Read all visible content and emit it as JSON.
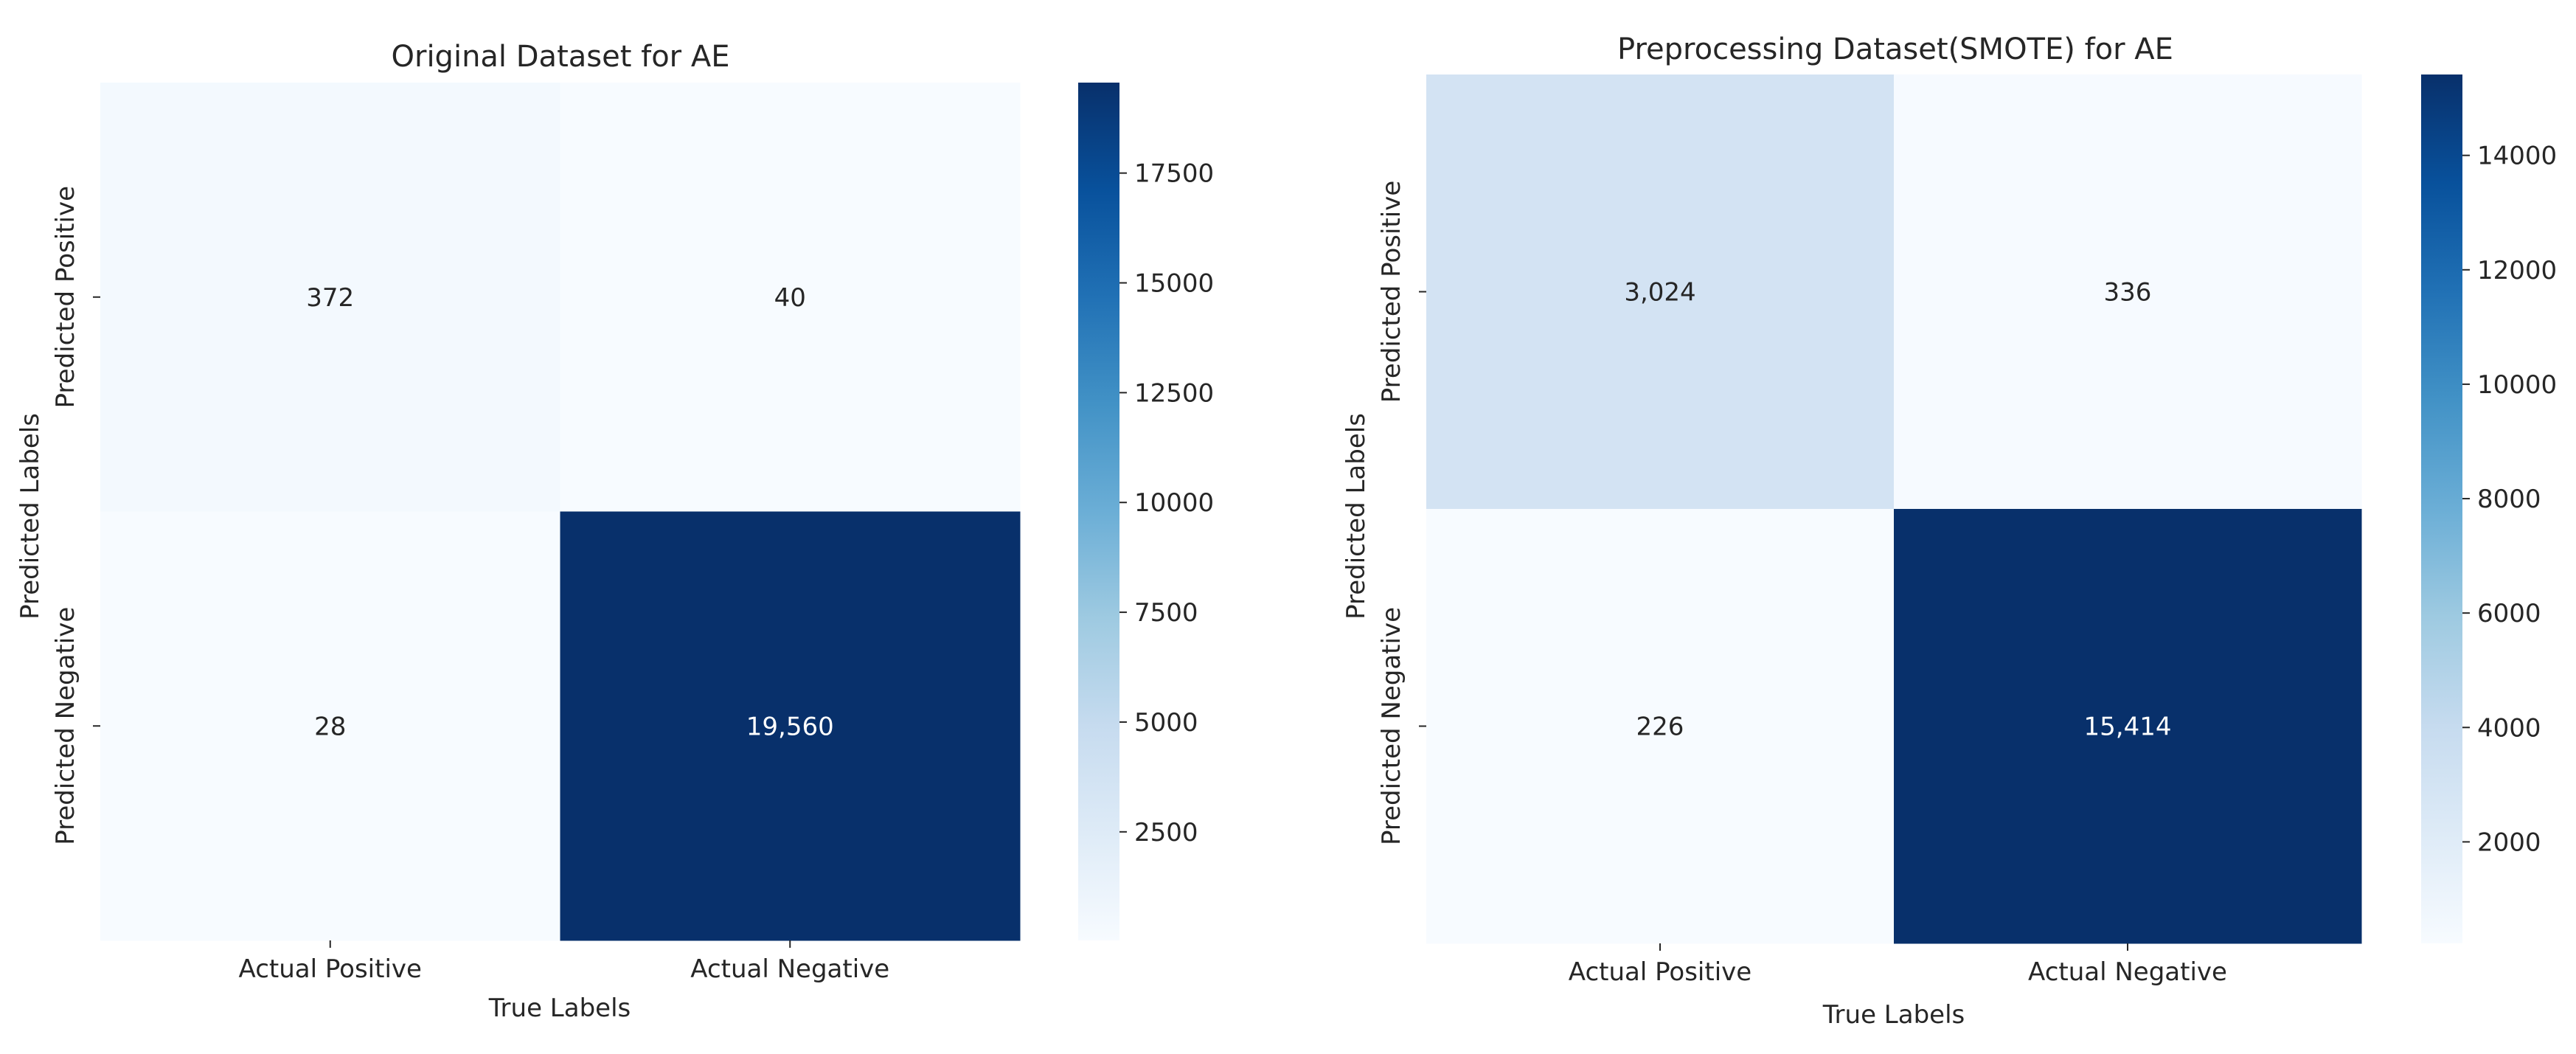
{
  "figure": {
    "name": "confusion-matrix-comparison"
  },
  "chart_data": [
    {
      "type": "heatmap",
      "title": "Original Dataset for AE",
      "xlabel": "True Labels",
      "ylabel": "Predicted Labels",
      "x_categories": [
        "Actual Positive",
        "Actual Negative"
      ],
      "y_categories": [
        "Predicted Positive",
        "Predicted Negative"
      ],
      "values": [
        [
          372,
          40
        ],
        [
          28,
          19560
        ]
      ],
      "value_labels": [
        [
          "372",
          "40"
        ],
        [
          "28",
          "19,560"
        ]
      ],
      "colormap": "Blues",
      "color_range": [
        28,
        19560
      ],
      "colorbar_ticks": [
        2500,
        5000,
        7500,
        10000,
        12500,
        15000,
        17500
      ],
      "colorbar_tick_labels": [
        "2500",
        "5000",
        "7500",
        "10000",
        "12500",
        "15000",
        "17500"
      ]
    },
    {
      "type": "heatmap",
      "title": "Preprocessing Dataset(SMOTE) for AE",
      "xlabel": "True Labels",
      "ylabel": "Predicted Labels",
      "x_categories": [
        "Actual Positive",
        "Actual Negative"
      ],
      "y_categories": [
        "Predicted Positive",
        "Predicted Negative"
      ],
      "values": [
        [
          3024,
          336
        ],
        [
          226,
          15414
        ]
      ],
      "value_labels": [
        [
          "3,024",
          "336"
        ],
        [
          "226",
          "15,414"
        ]
      ],
      "colormap": "Blues",
      "color_range": [
        226,
        15414
      ],
      "colorbar_ticks": [
        2000,
        4000,
        6000,
        8000,
        10000,
        12000,
        14000
      ],
      "colorbar_tick_labels": [
        "2000",
        "4000",
        "6000",
        "8000",
        "10000",
        "12000",
        "14000"
      ]
    }
  ]
}
